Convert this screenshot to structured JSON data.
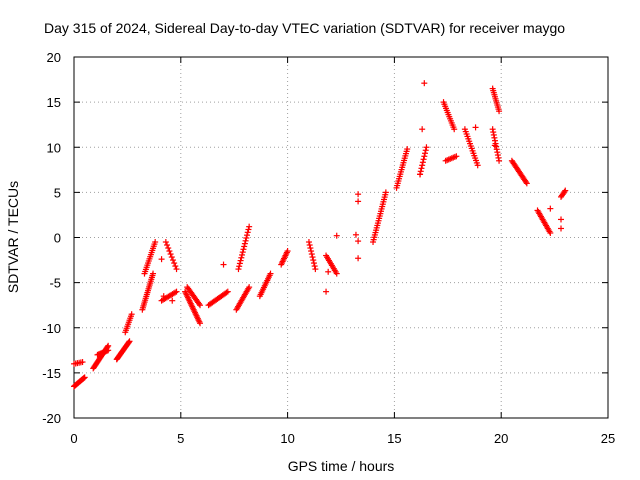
{
  "chart_data": {
    "type": "scatter",
    "title": "Day 315 of 2024, Sidereal Day-to-day VTEC variation (SDTVAR) for receiver maygo",
    "xlabel": "GPS time / hours",
    "ylabel": "SDTVAR / TECUs",
    "xlim": [
      0,
      25
    ],
    "ylim": [
      -20,
      20
    ],
    "xticks": [
      0,
      5,
      10,
      15,
      20,
      25
    ],
    "yticks": [
      -20,
      -15,
      -10,
      -5,
      0,
      5,
      10,
      15,
      20
    ],
    "xtick_labels": [
      "0",
      "5",
      "10",
      "15",
      "20",
      "25"
    ],
    "ytick_labels": [
      "-20",
      "-15",
      "-10",
      "-5",
      "0",
      "5",
      "10",
      "15",
      "20"
    ],
    "grid": true,
    "marker": "+",
    "color": "#ff0000",
    "segments": [
      {
        "x0": 0.0,
        "x1": 0.5,
        "y0": -16.5,
        "y1": -15.5,
        "n": 18
      },
      {
        "x0": 0.0,
        "x1": 0.4,
        "y0": -14.0,
        "y1": -13.8,
        "n": 6
      },
      {
        "x0": 0.9,
        "x1": 1.6,
        "y0": -14.5,
        "y1": -12.0,
        "n": 22
      },
      {
        "x0": 1.1,
        "x1": 1.6,
        "y0": -13.0,
        "y1": -12.5,
        "n": 10
      },
      {
        "x0": 2.0,
        "x1": 2.6,
        "y0": -13.5,
        "y1": -11.5,
        "n": 22
      },
      {
        "x0": 2.4,
        "x1": 2.7,
        "y0": -10.5,
        "y1": -8.5,
        "n": 10
      },
      {
        "x0": 3.2,
        "x1": 3.7,
        "y0": -8.0,
        "y1": -4.0,
        "n": 20
      },
      {
        "x0": 3.3,
        "x1": 3.8,
        "y0": -4.0,
        "y1": -0.5,
        "n": 16
      },
      {
        "x0": 4.1,
        "x1": 4.8,
        "y0": -7.0,
        "y1": -6.0,
        "n": 12
      },
      {
        "x0": 4.3,
        "x1": 4.8,
        "y0": -0.5,
        "y1": -3.5,
        "n": 10
      },
      {
        "x0": 5.2,
        "x1": 5.9,
        "y0": -6.0,
        "y1": -9.5,
        "n": 22
      },
      {
        "x0": 5.3,
        "x1": 5.9,
        "y0": -5.5,
        "y1": -7.5,
        "n": 14
      },
      {
        "x0": 6.3,
        "x1": 7.2,
        "y0": -7.5,
        "y1": -6.0,
        "n": 16
      },
      {
        "x0": 7.6,
        "x1": 8.2,
        "y0": -8.0,
        "y1": -5.5,
        "n": 16
      },
      {
        "x0": 7.7,
        "x1": 8.2,
        "y0": -3.5,
        "y1": 1.2,
        "n": 16
      },
      {
        "x0": 8.7,
        "x1": 9.2,
        "y0": -6.5,
        "y1": -4.0,
        "n": 14
      },
      {
        "x0": 9.7,
        "x1": 10.0,
        "y0": -3.0,
        "y1": -1.5,
        "n": 10
      },
      {
        "x0": 11.0,
        "x1": 11.3,
        "y0": -0.5,
        "y1": -3.5,
        "n": 10
      },
      {
        "x0": 11.8,
        "x1": 12.3,
        "y0": -2.0,
        "y1": -4.0,
        "n": 12
      },
      {
        "x0": 14.0,
        "x1": 14.6,
        "y0": -0.5,
        "y1": 5.0,
        "n": 22
      },
      {
        "x0": 15.1,
        "x1": 15.6,
        "y0": 5.5,
        "y1": 9.8,
        "n": 18
      },
      {
        "x0": 16.2,
        "x1": 16.5,
        "y0": 7.0,
        "y1": 10.0,
        "n": 10
      },
      {
        "x0": 17.3,
        "x1": 17.8,
        "y0": 15.0,
        "y1": 12.0,
        "n": 14
      },
      {
        "x0": 17.4,
        "x1": 17.9,
        "y0": 8.5,
        "y1": 9.0,
        "n": 8
      },
      {
        "x0": 18.3,
        "x1": 18.9,
        "y0": 12.0,
        "y1": 8.0,
        "n": 16
      },
      {
        "x0": 19.6,
        "x1": 19.9,
        "y0": 16.5,
        "y1": 14.0,
        "n": 12
      },
      {
        "x0": 19.6,
        "x1": 19.9,
        "y0": 12.0,
        "y1": 8.5,
        "n": 12
      },
      {
        "x0": 20.5,
        "x1": 21.2,
        "y0": 8.5,
        "y1": 6.0,
        "n": 18
      },
      {
        "x0": 21.7,
        "x1": 22.3,
        "y0": 3.0,
        "y1": 0.5,
        "n": 16
      },
      {
        "x0": 22.8,
        "x1": 23.0,
        "y0": 4.5,
        "y1": 5.2,
        "n": 6
      }
    ],
    "points": [
      [
        4.2,
        -6.5
      ],
      [
        4.1,
        -2.4
      ],
      [
        4.6,
        -7.0
      ],
      [
        7.0,
        -3.0
      ],
      [
        11.8,
        -6.0
      ],
      [
        11.9,
        -3.8
      ],
      [
        12.3,
        0.2
      ],
      [
        13.2,
        0.3
      ],
      [
        13.3,
        -0.4
      ],
      [
        13.3,
        -2.3
      ],
      [
        13.3,
        4.0
      ],
      [
        13.3,
        4.8
      ],
      [
        16.4,
        17.1
      ],
      [
        16.3,
        12.0
      ],
      [
        16.2,
        7.0
      ],
      [
        18.8,
        12.2
      ],
      [
        19.7,
        10.2
      ],
      [
        22.3,
        3.2
      ],
      [
        22.8,
        2.0
      ],
      [
        22.8,
        1.0
      ]
    ]
  }
}
